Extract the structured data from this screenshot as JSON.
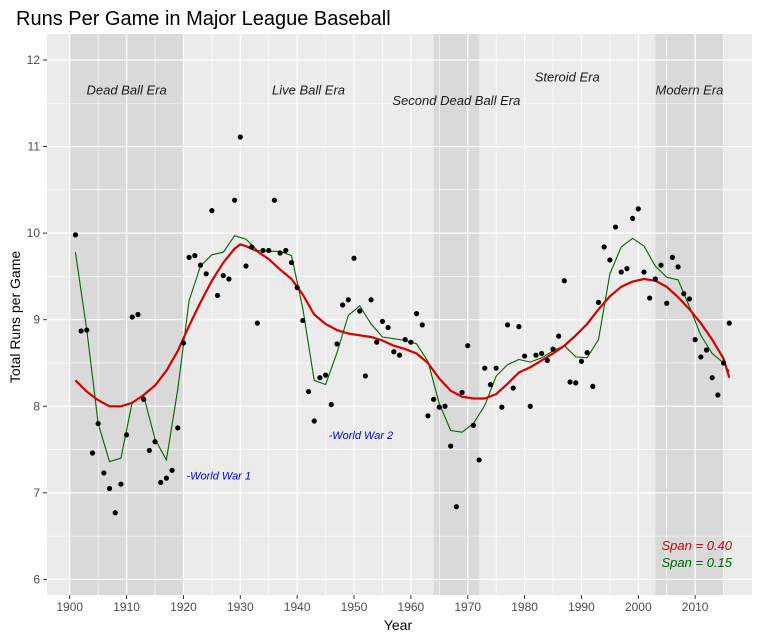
{
  "chart_data": {
    "type": "scatter",
    "title": "Runs Per Game in Major League Baseball",
    "xlabel": "Year",
    "ylabel": "Total Runs per Game",
    "xlim": [
      1896,
      2020
    ],
    "ylim": [
      5.82,
      12.3
    ],
    "x_ticks": [
      1900,
      1910,
      1920,
      1930,
      1940,
      1950,
      1960,
      1970,
      1980,
      1990,
      2000,
      2010
    ],
    "y_ticks": [
      6,
      7,
      8,
      9,
      10,
      11,
      12
    ],
    "grid": true,
    "eras": [
      {
        "label": "Dead Ball Era",
        "start": 1900,
        "end": 1920,
        "shaded": true
      },
      {
        "label": "Live Ball Era",
        "start": 1920,
        "end": 1964,
        "shaded": false
      },
      {
        "label": "Second Dead Ball Era",
        "start": 1964,
        "end": 1972,
        "shaded": true
      },
      {
        "label": "Steroid Era",
        "start": 1972,
        "end": 2003,
        "shaded": false
      },
      {
        "label": "Modern Era",
        "start": 2003,
        "end": 2015,
        "shaded": true
      }
    ],
    "annotations": [
      {
        "text": "-World War 1",
        "x": 1920,
        "y": 7.2,
        "color": "#0000ff"
      },
      {
        "text": "-World War 2",
        "x": 1945,
        "y": 7.67,
        "color": "#0000ff"
      }
    ],
    "points": [
      [
        1901,
        9.98
      ],
      [
        1902,
        8.87
      ],
      [
        1903,
        8.88
      ],
      [
        1904,
        7.46
      ],
      [
        1905,
        7.8
      ],
      [
        1906,
        7.23
      ],
      [
        1907,
        7.05
      ],
      [
        1908,
        6.77
      ],
      [
        1909,
        7.1
      ],
      [
        1910,
        7.67
      ],
      [
        1911,
        9.03
      ],
      [
        1912,
        9.06
      ],
      [
        1913,
        8.08
      ],
      [
        1914,
        7.49
      ],
      [
        1915,
        7.59
      ],
      [
        1916,
        7.12
      ],
      [
        1917,
        7.17
      ],
      [
        1918,
        7.26
      ],
      [
        1919,
        7.75
      ],
      [
        1920,
        8.73
      ],
      [
        1921,
        9.72
      ],
      [
        1922,
        9.74
      ],
      [
        1923,
        9.63
      ],
      [
        1924,
        9.53
      ],
      [
        1925,
        10.26
      ],
      [
        1926,
        9.28
      ],
      [
        1927,
        9.51
      ],
      [
        1928,
        9.47
      ],
      [
        1929,
        10.38
      ],
      [
        1930,
        11.11
      ],
      [
        1931,
        9.62
      ],
      [
        1932,
        9.84
      ],
      [
        1933,
        8.96
      ],
      [
        1934,
        9.8
      ],
      [
        1935,
        9.8
      ],
      [
        1936,
        10.38
      ],
      [
        1937,
        9.77
      ],
      [
        1938,
        9.8
      ],
      [
        1939,
        9.66
      ],
      [
        1940,
        9.37
      ],
      [
        1941,
        8.99
      ],
      [
        1942,
        8.17
      ],
      [
        1943,
        7.83
      ],
      [
        1944,
        8.33
      ],
      [
        1945,
        8.36
      ],
      [
        1946,
        8.02
      ],
      [
        1947,
        8.72
      ],
      [
        1948,
        9.17
      ],
      [
        1949,
        9.23
      ],
      [
        1950,
        9.71
      ],
      [
        1951,
        9.1
      ],
      [
        1952,
        8.35
      ],
      [
        1953,
        9.23
      ],
      [
        1954,
        8.74
      ],
      [
        1955,
        8.98
      ],
      [
        1956,
        8.91
      ],
      [
        1957,
        8.63
      ],
      [
        1958,
        8.59
      ],
      [
        1959,
        8.77
      ],
      [
        1960,
        8.74
      ],
      [
        1961,
        9.07
      ],
      [
        1962,
        8.94
      ],
      [
        1963,
        7.89
      ],
      [
        1964,
        8.08
      ],
      [
        1965,
        7.99
      ],
      [
        1966,
        8.0
      ],
      [
        1967,
        7.54
      ],
      [
        1968,
        6.84
      ],
      [
        1969,
        8.16
      ],
      [
        1970,
        8.7
      ],
      [
        1971,
        7.78
      ],
      [
        1972,
        7.38
      ],
      [
        1973,
        8.44
      ],
      [
        1974,
        8.25
      ],
      [
        1975,
        8.44
      ],
      [
        1976,
        7.99
      ],
      [
        1977,
        8.94
      ],
      [
        1978,
        8.21
      ],
      [
        1979,
        8.92
      ],
      [
        1980,
        8.58
      ],
      [
        1981,
        8.0
      ],
      [
        1982,
        8.59
      ],
      [
        1983,
        8.61
      ],
      [
        1984,
        8.53
      ],
      [
        1985,
        8.66
      ],
      [
        1986,
        8.81
      ],
      [
        1987,
        9.45
      ],
      [
        1988,
        8.28
      ],
      [
        1989,
        8.27
      ],
      [
        1990,
        8.52
      ],
      [
        1991,
        8.62
      ],
      [
        1992,
        8.23
      ],
      [
        1993,
        9.2
      ],
      [
        1994,
        9.84
      ],
      [
        1995,
        9.69
      ],
      [
        1996,
        10.07
      ],
      [
        1997,
        9.55
      ],
      [
        1998,
        9.59
      ],
      [
        1999,
        10.17
      ],
      [
        2000,
        10.28
      ],
      [
        2001,
        9.55
      ],
      [
        2002,
        9.25
      ],
      [
        2003,
        9.47
      ],
      [
        2004,
        9.63
      ],
      [
        2005,
        9.19
      ],
      [
        2006,
        9.72
      ],
      [
        2007,
        9.61
      ],
      [
        2008,
        9.3
      ],
      [
        2009,
        9.24
      ],
      [
        2010,
        8.77
      ],
      [
        2011,
        8.57
      ],
      [
        2012,
        8.65
      ],
      [
        2013,
        8.33
      ],
      [
        2014,
        8.13
      ],
      [
        2015,
        8.5
      ],
      [
        2016,
        8.96
      ]
    ],
    "series": [
      {
        "name": "Span = 0.40",
        "color": "#d40000",
        "x": [
          1901,
          1903,
          1905,
          1907,
          1909,
          1911,
          1913,
          1915,
          1917,
          1919,
          1921,
          1923,
          1925,
          1927,
          1929,
          1930,
          1931,
          1933,
          1935,
          1937,
          1939,
          1941,
          1943,
          1945,
          1947,
          1949,
          1951,
          1953,
          1955,
          1957,
          1959,
          1961,
          1963,
          1965,
          1967,
          1969,
          1971,
          1973,
          1975,
          1977,
          1979,
          1981,
          1983,
          1985,
          1987,
          1989,
          1991,
          1993,
          1995,
          1997,
          1999,
          2001,
          2003,
          2005,
          2007,
          2009,
          2011,
          2013,
          2015,
          2016
        ],
        "y": [
          8.3,
          8.17,
          8.07,
          8.0,
          8.0,
          8.04,
          8.13,
          8.24,
          8.41,
          8.64,
          8.93,
          9.2,
          9.45,
          9.66,
          9.82,
          9.87,
          9.85,
          9.79,
          9.7,
          9.58,
          9.47,
          9.29,
          9.06,
          8.95,
          8.88,
          8.84,
          8.82,
          8.8,
          8.76,
          8.7,
          8.66,
          8.61,
          8.5,
          8.32,
          8.18,
          8.11,
          8.09,
          8.09,
          8.14,
          8.26,
          8.39,
          8.45,
          8.53,
          8.61,
          8.7,
          8.82,
          8.95,
          9.12,
          9.27,
          9.38,
          9.44,
          9.47,
          9.45,
          9.38,
          9.26,
          9.12,
          8.96,
          8.77,
          8.55,
          8.33
        ]
      },
      {
        "name": "Span = 0.15",
        "color": "#006400",
        "x": [
          1901,
          1903,
          1905,
          1907,
          1909,
          1911,
          1913,
          1915,
          1917,
          1919,
          1921,
          1923,
          1925,
          1927,
          1929,
          1931,
          1933,
          1935,
          1937,
          1939,
          1941,
          1943,
          1945,
          1947,
          1949,
          1951,
          1953,
          1955,
          1957,
          1959,
          1961,
          1963,
          1965,
          1967,
          1969,
          1971,
          1973,
          1975,
          1977,
          1979,
          1981,
          1983,
          1985,
          1987,
          1989,
          1991,
          1993,
          1995,
          1997,
          1999,
          2001,
          2003,
          2005,
          2007,
          2009,
          2011,
          2013,
          2015,
          2016
        ],
        "y": [
          9.78,
          8.88,
          7.8,
          7.36,
          7.4,
          8.05,
          8.12,
          7.62,
          7.38,
          8.2,
          9.22,
          9.62,
          9.75,
          9.78,
          9.97,
          9.93,
          9.8,
          9.79,
          9.79,
          9.74,
          9.13,
          8.3,
          8.25,
          8.62,
          9.05,
          9.16,
          8.95,
          8.8,
          8.78,
          8.76,
          8.72,
          8.52,
          8.03,
          7.72,
          7.7,
          7.8,
          8.01,
          8.35,
          8.48,
          8.54,
          8.51,
          8.56,
          8.64,
          8.7,
          8.57,
          8.56,
          8.77,
          9.53,
          9.84,
          9.94,
          9.85,
          9.62,
          9.49,
          9.46,
          9.15,
          8.82,
          8.61,
          8.5,
          8.4
        ]
      }
    ]
  }
}
